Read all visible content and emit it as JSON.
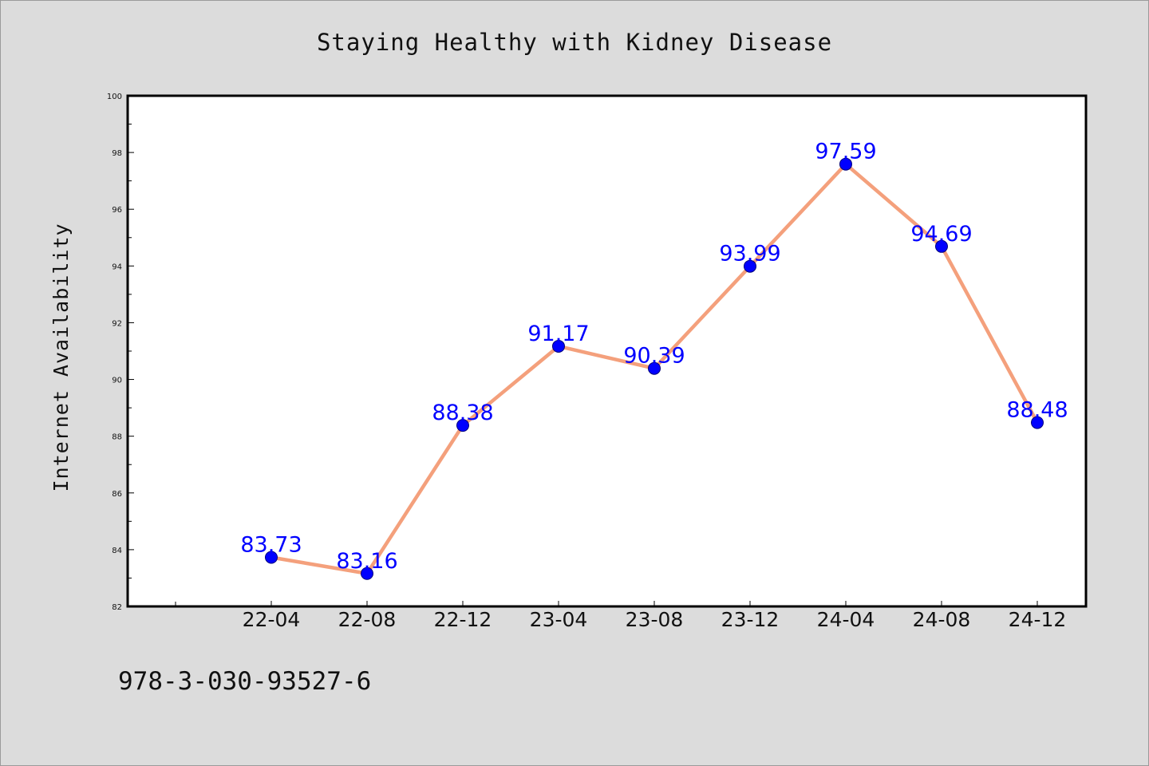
{
  "chart_data": {
    "type": "line",
    "title": "Staying Healthy with Kidney Disease",
    "xlabel": "",
    "ylabel": "Internet Availability",
    "categories": [
      "22-04",
      "22-08",
      "22-12",
      "23-04",
      "23-08",
      "23-12",
      "24-04",
      "24-08",
      "24-12"
    ],
    "values": [
      83.73,
      83.16,
      88.38,
      91.17,
      90.39,
      93.99,
      97.59,
      94.69,
      88.48
    ],
    "value_labels": [
      "83.73",
      "83.16",
      "88.38",
      "91.17",
      "90.39",
      "93.99",
      "97.59",
      "94.69",
      "88.48"
    ],
    "ylim": [
      82,
      100
    ],
    "yticks": [
      82,
      84,
      86,
      88,
      90,
      92,
      94,
      96,
      98,
      100
    ],
    "ytick_labels": [
      "82",
      "84",
      "86",
      "88",
      "90",
      "92",
      "94",
      "96",
      "98",
      "100"
    ],
    "grid": false,
    "line_color": "#f4a07c",
    "marker_color": "#0000ff",
    "label_color": "#0000ff"
  },
  "footer": {
    "isbn": "978-3-030-93527-6"
  }
}
